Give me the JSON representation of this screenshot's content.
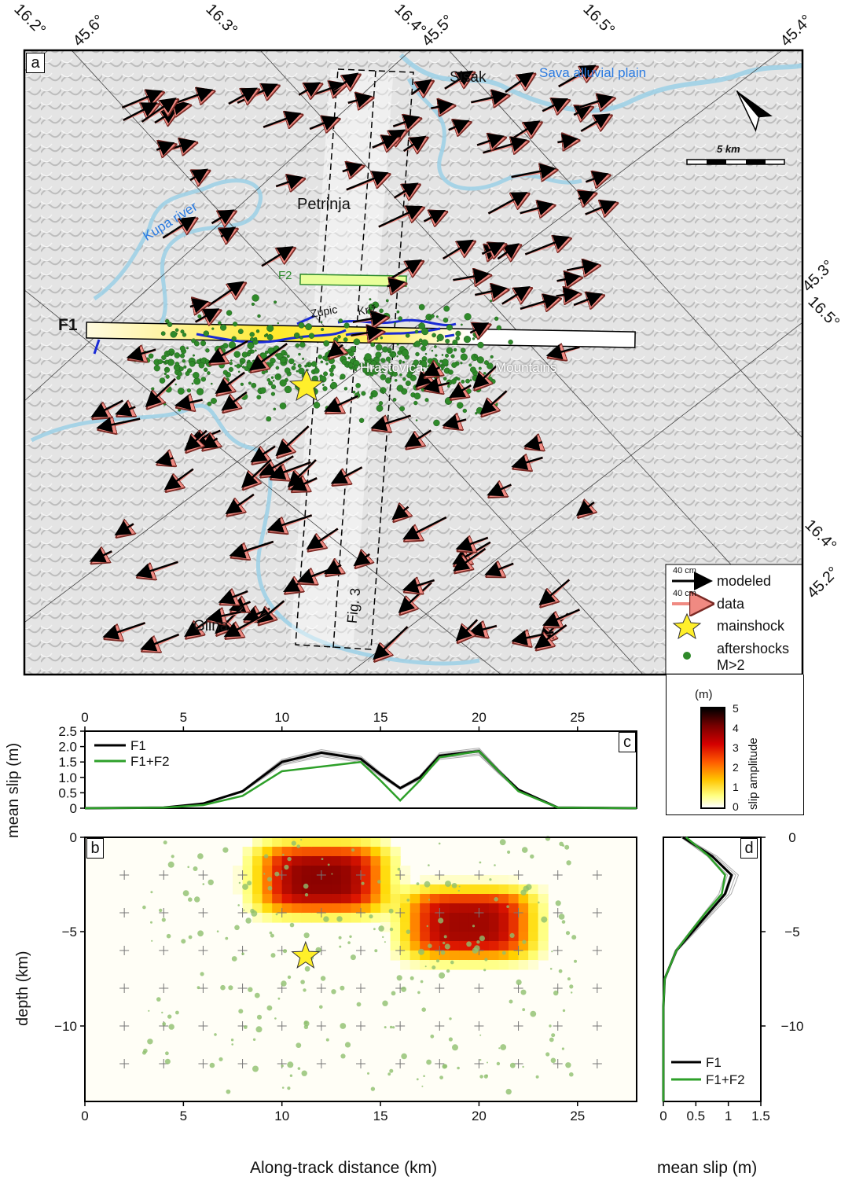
{
  "panels": {
    "a": "a",
    "b": "b",
    "c": "c",
    "d": "d"
  },
  "map": {
    "grid_labels": {
      "top": [
        "16.2°",
        "45.6°",
        "16.3°",
        "16.4°",
        "45.5°",
        "16.5°",
        "45.4°"
      ],
      "right": [
        "45.3°",
        "16.5°",
        "16.4°",
        "45.2°"
      ]
    },
    "places": {
      "sisak": "Sisak",
      "petrinja": "Petrinja",
      "glina": "Glina",
      "zupic": "Zupic",
      "kriz": "Križ",
      "hrastovica": "Hrastovica",
      "mountains": "Mountains",
      "kupa_river": "Kupa river",
      "sava_plain": "Sava alluvial plain"
    },
    "faults": {
      "f1": "F1",
      "f2": "F2"
    },
    "fig3_label": "Fig. 3",
    "scale_bar": "5 km",
    "colors": {
      "river": "#9fd0e6",
      "fault_trace": "#1a2bd6",
      "aftershock": "#2f8a2a",
      "data_arrow": "#f08a82",
      "modeled_arrow": "#000000",
      "f2_box": "#e9ff9a",
      "f1_slip": "#ffea2a"
    }
  },
  "legend": {
    "modeled_scale": "40 cm",
    "modeled": "modeled",
    "data_scale": "40 cm",
    "data": "data",
    "mainshock": "mainshock",
    "aftershocks_line1": "aftershocks",
    "aftershocks_line2": "M>2",
    "colorbar_unit": "(m)",
    "colorbar_label": "slip amplitude",
    "colorbar_ticks": [
      "5",
      "4",
      "3",
      "2",
      "1",
      "0"
    ]
  },
  "chart_data": [
    {
      "panel": "c",
      "type": "line",
      "xlabel": "",
      "ylabel": "mean slip (m)",
      "xlim": [
        0,
        28
      ],
      "ylim": [
        0,
        2.5
      ],
      "x_ticks": [
        "0",
        "5",
        "10",
        "15",
        "20",
        "25"
      ],
      "y_ticks": [
        "0",
        "0.5",
        "1.0",
        "1.5",
        "2.0",
        "2.5"
      ],
      "legend": "top-left",
      "series": [
        {
          "name": "F1",
          "color": "#000000",
          "x": [
            0,
            4,
            6,
            8,
            10,
            12,
            14,
            15,
            16,
            17,
            18,
            20,
            21,
            22,
            24,
            28
          ],
          "y": [
            0,
            0.02,
            0.15,
            0.55,
            1.5,
            1.8,
            1.6,
            1.1,
            0.65,
            1.0,
            1.7,
            1.85,
            1.2,
            0.6,
            0.02,
            0
          ]
        },
        {
          "name": "F1+F2",
          "color": "#2ea02a",
          "x": [
            0,
            4,
            6,
            8,
            10,
            14,
            15,
            16,
            17,
            18,
            20,
            21,
            22,
            24,
            28
          ],
          "y": [
            0,
            0.02,
            0.1,
            0.4,
            1.2,
            1.5,
            0.9,
            0.25,
            0.9,
            1.65,
            1.85,
            1.2,
            0.55,
            0.02,
            0
          ]
        }
      ]
    },
    {
      "panel": "b",
      "type": "heatmap",
      "xlabel": "Along-track distance (km)",
      "ylabel": "depth (km)",
      "xlim": [
        0,
        28
      ],
      "ylim": [
        -14,
        0
      ],
      "x_ticks": [
        "0",
        "5",
        "10",
        "15",
        "20",
        "25"
      ],
      "y_ticks": [
        "0",
        "−5",
        "−10"
      ],
      "colorbar_range": [
        0,
        5
      ],
      "slip_patches": [
        {
          "x_center": 12,
          "depth_center": -2.2,
          "peak_slip": 4.3
        },
        {
          "x_center": 19.5,
          "depth_center": -4.6,
          "peak_slip": 4.1
        }
      ],
      "mainshock": {
        "x": 11.2,
        "depth": -6.3
      }
    },
    {
      "panel": "d",
      "type": "line",
      "xlabel": "mean slip (m)",
      "ylabel": "",
      "xlim": [
        0,
        1.5
      ],
      "ylim": [
        -14,
        0
      ],
      "x_ticks": [
        "0",
        "0.5",
        "1",
        "1.5"
      ],
      "y_ticks": [
        "0",
        "−5",
        "−10"
      ],
      "legend": "bottom-right",
      "series": [
        {
          "name": "F1",
          "color": "#000000",
          "slip": [
            0.3,
            0.75,
            1.05,
            0.95,
            0.7,
            0.45,
            0.2,
            0.02,
            0,
            0,
            0
          ],
          "depth": [
            0,
            -1,
            -2,
            -3,
            -4,
            -5,
            -6,
            -7.5,
            -9,
            -12,
            -14
          ]
        },
        {
          "name": "F1+F2",
          "color": "#2ea02a",
          "slip": [
            0.35,
            0.7,
            0.95,
            0.9,
            0.65,
            0.42,
            0.2,
            0.02,
            0,
            0,
            0
          ],
          "depth": [
            0,
            -1,
            -2,
            -3,
            -4,
            -5,
            -6,
            -7.5,
            -9,
            -12,
            -14
          ]
        }
      ]
    }
  ]
}
